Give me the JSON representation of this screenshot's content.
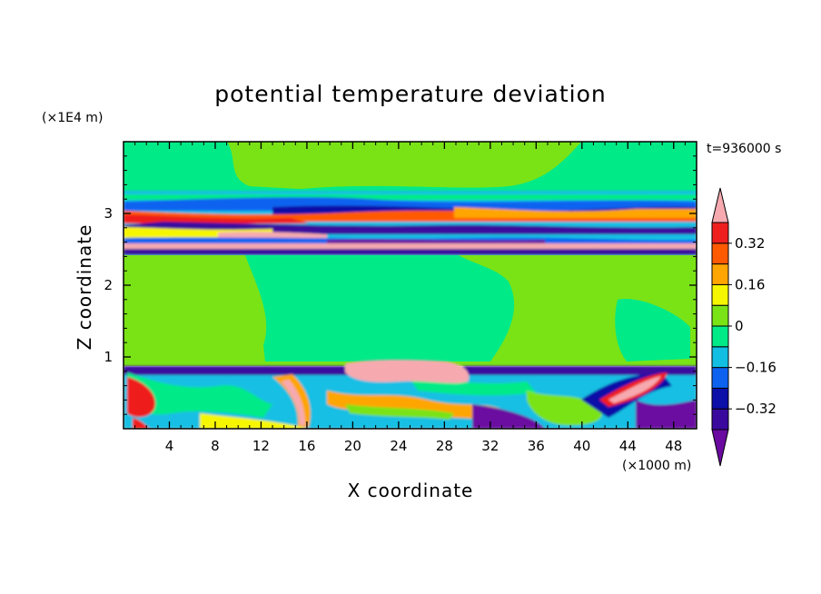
{
  "chart_data": {
    "type": "heatmap",
    "title": "potential temperature deviation",
    "xlabel": "X coordinate",
    "ylabel": "Z coordinate",
    "x_unit": "(×1000 m)",
    "y_unit": "(×1E4 m)",
    "time_label": "t=936000 s",
    "xlim": [
      0,
      50
    ],
    "ylim": [
      0,
      4
    ],
    "x_ticks": [
      "4",
      "8",
      "12",
      "16",
      "20",
      "24",
      "28",
      "32",
      "36",
      "40",
      "44",
      "48"
    ],
    "y_ticks": [
      "1",
      "2",
      "3"
    ],
    "colorbar": {
      "levels": [
        -0.4,
        -0.32,
        -0.24,
        -0.16,
        -0.08,
        0,
        0.08,
        0.16,
        0.24,
        0.32,
        0.4
      ],
      "tick_labels": [
        "0.32",
        "0.16",
        "0",
        "−0.16",
        "−0.32"
      ],
      "tick_values": [
        0.32,
        0.16,
        0,
        -0.16,
        -0.32
      ],
      "extend": "both",
      "colors": [
        "#6a0aa0",
        "#3a0a9e",
        "#0c0fa8",
        "#0d63f0",
        "#12bfe3",
        "#00ea88",
        "#7ae316",
        "#f6f600",
        "#ffa500",
        "#ff5a00",
        "#ef1f1f",
        "#f6aab0"
      ]
    },
    "layers": [
      {
        "z_range": [
          3.4,
          4.0
        ],
        "value_range": [
          0,
          0.08
        ],
        "description_color": "#7ae316"
      },
      {
        "z_range": [
          2.5,
          3.4
        ],
        "value_range": [
          -0.4,
          0.4
        ]
      },
      {
        "z_range": [
          0.9,
          2.45
        ],
        "value_range": [
          0,
          0.08
        ]
      },
      {
        "z_range": [
          0.0,
          0.9
        ],
        "value_range": [
          -0.4,
          0.4
        ]
      }
    ]
  }
}
